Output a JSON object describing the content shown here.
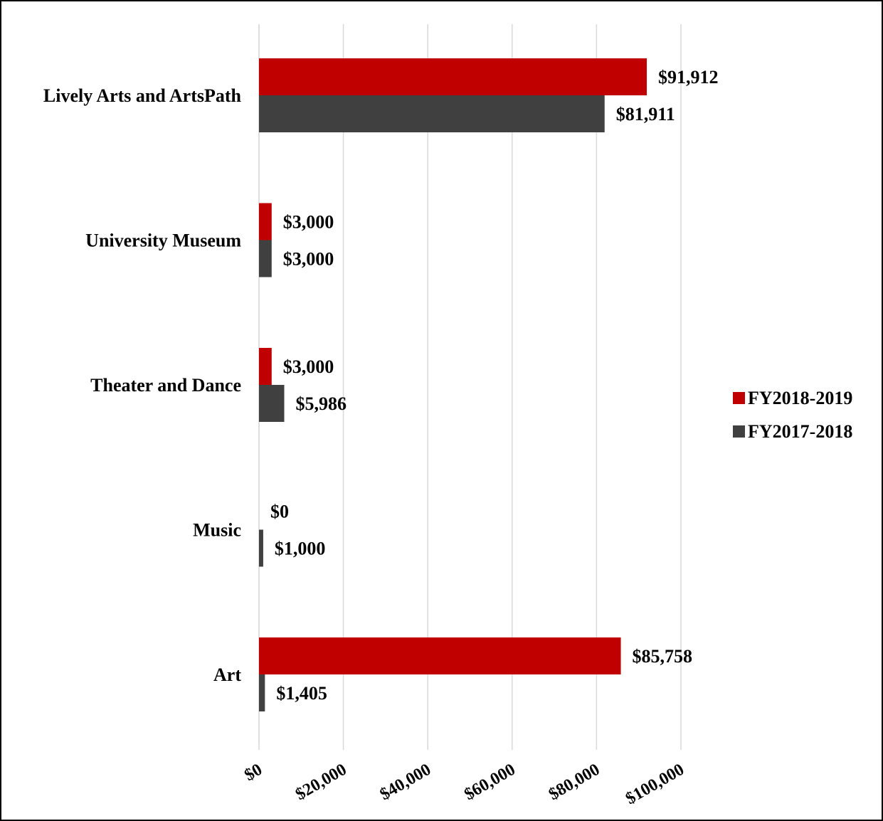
{
  "chart_data": {
    "type": "bar",
    "orientation": "horizontal",
    "title": "",
    "xlabel": "",
    "ylabel": "",
    "categories": [
      "Lively Arts and ArtsPath",
      "University Museum",
      "Theater and Dance",
      "Music",
      "Art"
    ],
    "series": [
      {
        "name": "FY2018-2019",
        "color": "#c00000",
        "values": [
          91912,
          3000,
          3000,
          0,
          85758
        ],
        "labels": [
          "$91,912",
          "$3,000",
          "$3,000",
          "$0",
          "$85,758"
        ]
      },
      {
        "name": "FY2017-2018",
        "color": "#404040",
        "values": [
          81911,
          3000,
          5986,
          1000,
          1405
        ],
        "labels": [
          "$81,911",
          "$3,000",
          "$5,986",
          "$1,000",
          "$1,405"
        ]
      }
    ],
    "xlim": [
      0,
      100000
    ],
    "x_ticks": [
      0,
      20000,
      40000,
      60000,
      80000,
      100000
    ],
    "x_tick_labels": [
      "$0",
      "$20,000",
      "$40,000",
      "$60,000",
      "$80,000",
      "$100,000"
    ],
    "grid": "vertical",
    "legend_position": "right"
  }
}
